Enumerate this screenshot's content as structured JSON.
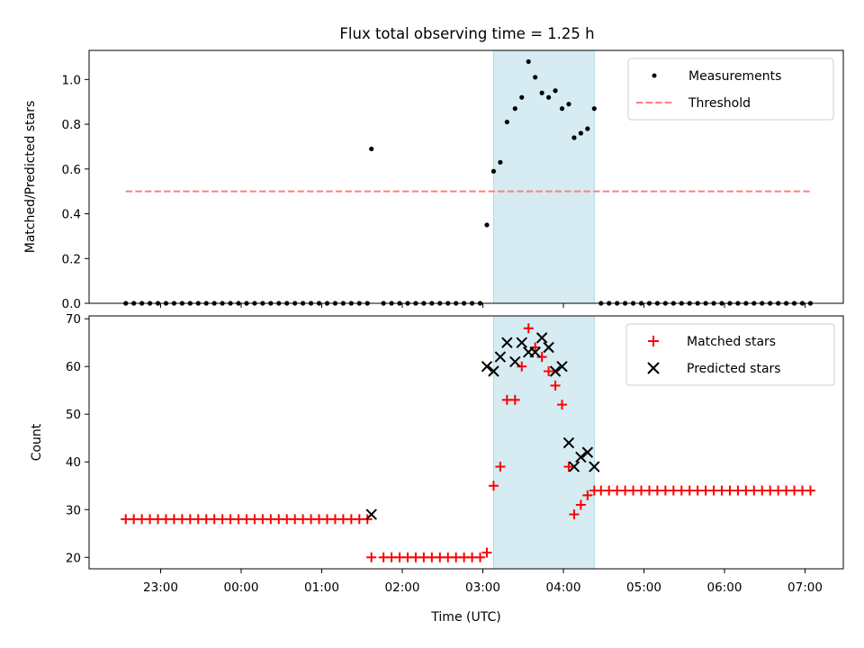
{
  "chart_data": [
    {
      "type": "scatter",
      "title": "Flux total observing time = 1.25 h",
      "xlabel": "",
      "ylabel": "Matched/Predicted stars",
      "ylim": [
        0,
        1.13
      ],
      "y_ticks": [
        "0.0",
        "0.2",
        "0.4",
        "0.6",
        "0.8",
        "1.0"
      ],
      "legend_position": "top-right",
      "highlight_band": {
        "start": "03:08",
        "end": "04:23",
        "color": "#add8e6"
      },
      "series": [
        {
          "name": "Measurements",
          "marker": "dot",
          "color": "#000000",
          "points": [
            [
              "22:34",
              0
            ],
            [
              "22:40",
              0
            ],
            [
              "22:46",
              0
            ],
            [
              "22:52",
              0
            ],
            [
              "22:58",
              0
            ],
            [
              "23:04",
              0
            ],
            [
              "23:10",
              0
            ],
            [
              "23:16",
              0
            ],
            [
              "23:22",
              0
            ],
            [
              "23:28",
              0
            ],
            [
              "23:34",
              0
            ],
            [
              "23:40",
              0
            ],
            [
              "23:46",
              0
            ],
            [
              "23:52",
              0
            ],
            [
              "23:58",
              0
            ],
            [
              "00:04",
              0
            ],
            [
              "00:10",
              0
            ],
            [
              "00:16",
              0
            ],
            [
              "00:22",
              0
            ],
            [
              "00:28",
              0
            ],
            [
              "00:34",
              0
            ],
            [
              "00:40",
              0
            ],
            [
              "00:46",
              0
            ],
            [
              "00:52",
              0
            ],
            [
              "00:58",
              0
            ],
            [
              "01:04",
              0
            ],
            [
              "01:10",
              0
            ],
            [
              "01:16",
              0
            ],
            [
              "01:22",
              0
            ],
            [
              "01:28",
              0
            ],
            [
              "01:34",
              0
            ],
            [
              "01:37",
              0.69
            ],
            [
              "01:46",
              0
            ],
            [
              "01:52",
              0
            ],
            [
              "01:58",
              0
            ],
            [
              "02:04",
              0
            ],
            [
              "02:10",
              0
            ],
            [
              "02:16",
              0
            ],
            [
              "02:22",
              0
            ],
            [
              "02:28",
              0
            ],
            [
              "02:34",
              0
            ],
            [
              "02:40",
              0
            ],
            [
              "02:46",
              0
            ],
            [
              "02:52",
              0
            ],
            [
              "02:58",
              0
            ],
            [
              "03:03",
              0.35
            ],
            [
              "03:08",
              0.59
            ],
            [
              "03:13",
              0.63
            ],
            [
              "03:18",
              0.81
            ],
            [
              "03:24",
              0.87
            ],
            [
              "03:29",
              0.92
            ],
            [
              "03:34",
              1.08
            ],
            [
              "03:39",
              1.01
            ],
            [
              "03:44",
              0.94
            ],
            [
              "03:49",
              0.92
            ],
            [
              "03:54",
              0.95
            ],
            [
              "03:59",
              0.87
            ],
            [
              "04:04",
              0.89
            ],
            [
              "04:08",
              0.74
            ],
            [
              "04:13",
              0.76
            ],
            [
              "04:18",
              0.78
            ],
            [
              "04:23",
              0.87
            ],
            [
              "04:28",
              0
            ],
            [
              "04:34",
              0
            ],
            [
              "04:40",
              0
            ],
            [
              "04:46",
              0
            ],
            [
              "04:52",
              0
            ],
            [
              "04:58",
              0
            ],
            [
              "05:04",
              0
            ],
            [
              "05:10",
              0
            ],
            [
              "05:16",
              0
            ],
            [
              "05:22",
              0
            ],
            [
              "05:28",
              0
            ],
            [
              "05:34",
              0
            ],
            [
              "05:40",
              0
            ],
            [
              "05:46",
              0
            ],
            [
              "05:52",
              0
            ],
            [
              "05:58",
              0
            ],
            [
              "06:04",
              0
            ],
            [
              "06:10",
              0
            ],
            [
              "06:16",
              0
            ],
            [
              "06:22",
              0
            ],
            [
              "06:28",
              0
            ],
            [
              "06:34",
              0
            ],
            [
              "06:40",
              0
            ],
            [
              "06:46",
              0
            ],
            [
              "06:52",
              0
            ],
            [
              "06:58",
              0
            ],
            [
              "07:04",
              0
            ]
          ]
        },
        {
          "name": "Threshold",
          "marker": "dashed-line",
          "color": "#ff7f7f",
          "points": [
            [
              "22:34",
              0.5
            ],
            [
              "07:04",
              0.5
            ]
          ]
        }
      ]
    },
    {
      "type": "scatter",
      "title": "",
      "xlabel": "Time (UTC)",
      "ylabel": "Count",
      "ylim": [
        17.6,
        70.6
      ],
      "y_ticks": [
        "20",
        "30",
        "40",
        "50",
        "60",
        "70"
      ],
      "x_ticks": [
        "23:00",
        "00:00",
        "01:00",
        "02:00",
        "03:00",
        "04:00",
        "05:00",
        "06:00",
        "07:00"
      ],
      "legend_position": "top-right",
      "highlight_band": {
        "start": "03:08",
        "end": "04:23",
        "color": "#add8e6"
      },
      "series": [
        {
          "name": "Matched stars",
          "marker": "plus",
          "color": "#ff0000",
          "points": [
            [
              "22:34",
              28
            ],
            [
              "22:40",
              28
            ],
            [
              "22:46",
              28
            ],
            [
              "22:52",
              28
            ],
            [
              "22:58",
              28
            ],
            [
              "23:04",
              28
            ],
            [
              "23:10",
              28
            ],
            [
              "23:16",
              28
            ],
            [
              "23:22",
              28
            ],
            [
              "23:28",
              28
            ],
            [
              "23:34",
              28
            ],
            [
              "23:40",
              28
            ],
            [
              "23:46",
              28
            ],
            [
              "23:52",
              28
            ],
            [
              "23:58",
              28
            ],
            [
              "00:04",
              28
            ],
            [
              "00:10",
              28
            ],
            [
              "00:16",
              28
            ],
            [
              "00:22",
              28
            ],
            [
              "00:28",
              28
            ],
            [
              "00:34",
              28
            ],
            [
              "00:40",
              28
            ],
            [
              "00:46",
              28
            ],
            [
              "00:52",
              28
            ],
            [
              "00:58",
              28
            ],
            [
              "01:04",
              28
            ],
            [
              "01:10",
              28
            ],
            [
              "01:16",
              28
            ],
            [
              "01:22",
              28
            ],
            [
              "01:28",
              28
            ],
            [
              "01:34",
              28
            ],
            [
              "01:37",
              20
            ],
            [
              "01:46",
              20
            ],
            [
              "01:52",
              20
            ],
            [
              "01:58",
              20
            ],
            [
              "02:04",
              20
            ],
            [
              "02:10",
              20
            ],
            [
              "02:16",
              20
            ],
            [
              "02:22",
              20
            ],
            [
              "02:28",
              20
            ],
            [
              "02:34",
              20
            ],
            [
              "02:40",
              20
            ],
            [
              "02:46",
              20
            ],
            [
              "02:52",
              20
            ],
            [
              "02:58",
              20
            ],
            [
              "03:03",
              21
            ],
            [
              "03:08",
              35
            ],
            [
              "03:13",
              39
            ],
            [
              "03:18",
              53
            ],
            [
              "03:24",
              53
            ],
            [
              "03:29",
              60
            ],
            [
              "03:34",
              68
            ],
            [
              "03:39",
              64
            ],
            [
              "03:44",
              62
            ],
            [
              "03:49",
              59
            ],
            [
              "03:54",
              56
            ],
            [
              "03:59",
              52
            ],
            [
              "04:04",
              39
            ],
            [
              "04:08",
              29
            ],
            [
              "04:13",
              31
            ],
            [
              "04:18",
              33
            ],
            [
              "04:23",
              34
            ],
            [
              "04:28",
              34
            ],
            [
              "04:34",
              34
            ],
            [
              "04:40",
              34
            ],
            [
              "04:46",
              34
            ],
            [
              "04:52",
              34
            ],
            [
              "04:58",
              34
            ],
            [
              "05:04",
              34
            ],
            [
              "05:10",
              34
            ],
            [
              "05:16",
              34
            ],
            [
              "05:22",
              34
            ],
            [
              "05:28",
              34
            ],
            [
              "05:34",
              34
            ],
            [
              "05:40",
              34
            ],
            [
              "05:46",
              34
            ],
            [
              "05:52",
              34
            ],
            [
              "05:58",
              34
            ],
            [
              "06:04",
              34
            ],
            [
              "06:10",
              34
            ],
            [
              "06:16",
              34
            ],
            [
              "06:22",
              34
            ],
            [
              "06:28",
              34
            ],
            [
              "06:34",
              34
            ],
            [
              "06:40",
              34
            ],
            [
              "06:46",
              34
            ],
            [
              "06:52",
              34
            ],
            [
              "06:58",
              34
            ],
            [
              "07:04",
              34
            ]
          ]
        },
        {
          "name": "Predicted stars",
          "marker": "x",
          "color": "#000000",
          "points": [
            [
              "01:37",
              29
            ],
            [
              "03:03",
              60
            ],
            [
              "03:08",
              59
            ],
            [
              "03:13",
              62
            ],
            [
              "03:18",
              65
            ],
            [
              "03:24",
              61
            ],
            [
              "03:29",
              65
            ],
            [
              "03:34",
              63
            ],
            [
              "03:39",
              63
            ],
            [
              "03:44",
              66
            ],
            [
              "03:49",
              64
            ],
            [
              "03:54",
              59
            ],
            [
              "03:59",
              60
            ],
            [
              "04:04",
              44
            ],
            [
              "04:08",
              39
            ],
            [
              "04:13",
              41
            ],
            [
              "04:18",
              42
            ],
            [
              "04:23",
              39
            ]
          ]
        }
      ]
    }
  ]
}
